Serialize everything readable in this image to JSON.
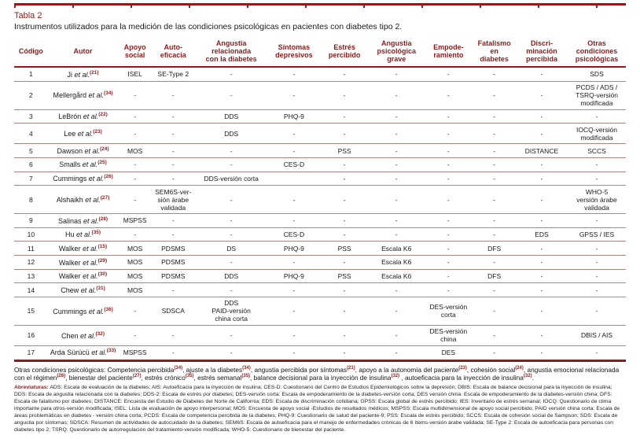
{
  "title": "Tabla 2",
  "subtitle": "Instrumentos utilizados para la medición de las condiciones psicológicas en pacientes con diabetes tipo 2.",
  "colors": {
    "accent_dark_red": "#8e1b1b",
    "row_separator": "#b08383",
    "text": "#1a1a1a"
  },
  "table": {
    "etal": "et al.",
    "columns": [
      {
        "id": "codigo",
        "label": "Código"
      },
      {
        "id": "autor",
        "label": "Autor"
      },
      {
        "id": "apoyo-social",
        "label": "Apoyo\nsocial"
      },
      {
        "id": "auto-eficacia",
        "label": "Auto-\neficacia"
      },
      {
        "id": "angustia-diabetes",
        "label": "Angustia\nrelacionada\ncon la diabetes"
      },
      {
        "id": "sintomas-depresivos",
        "label": "Síntomas\ndepresivos"
      },
      {
        "id": "estres-percibido",
        "label": "Estrés\npercibido"
      },
      {
        "id": "angustia-grave",
        "label": "Angustia\npsicológica\ngrave"
      },
      {
        "id": "empoderamiento",
        "label": "Empode-\nramiento"
      },
      {
        "id": "fatalismo-diabetes",
        "label": "Fatalismo\nen\ndiabetes"
      },
      {
        "id": "discriminacion-percibida",
        "label": "Discri-\nminación\npercibida"
      },
      {
        "id": "otras-condiciones",
        "label": "Otras\ncondiciones\npsicológicas"
      }
    ],
    "rows": [
      {
        "codigo": "1",
        "autor": "Ji",
        "cite": "(21)",
        "cells": [
          "ISEL",
          "SE-Type 2",
          "-",
          "-",
          "-",
          "-",
          "-",
          "-",
          "-",
          "SDS"
        ]
      },
      {
        "codigo": "2",
        "autor": "Mellergård",
        "cite": "(34)",
        "cells": [
          "-",
          "-",
          "-",
          "-",
          "-",
          "-",
          "-",
          "-",
          "-",
          "PCDS / ADS /\nTSRQ-versión\nmodificada"
        ]
      },
      {
        "codigo": "3",
        "autor": "LeBrón",
        "cite": "(22)",
        "cells": [
          "-",
          "-",
          "DDS",
          "PHQ-9",
          "-",
          "-",
          "-",
          "-",
          "-",
          "-"
        ]
      },
      {
        "codigo": "4",
        "autor": "Lee",
        "cite": "(23)",
        "cells": [
          "-",
          "-",
          "DDS",
          "-",
          "-",
          "-",
          "-",
          "-",
          "-",
          "IOCQ-versión\nmodificada"
        ]
      },
      {
        "codigo": "5",
        "autor": "Dawson",
        "cite": "(24)",
        "cells": [
          "MOS",
          "-",
          "-",
          "-",
          "PSS",
          "-",
          "-",
          "-",
          "DISTANCE",
          "SCCS"
        ]
      },
      {
        "codigo": "6",
        "autor": "Smalls",
        "cite": "(25)",
        "cells": [
          "-",
          "-",
          "-",
          "CES-D",
          "-",
          "-",
          "-",
          "-",
          "-",
          "-"
        ]
      },
      {
        "codigo": "7",
        "autor": "Cummings",
        "cite": "(26)",
        "cells": [
          "-",
          "-",
          "DDS-versión corta",
          "",
          "-",
          "-",
          "-",
          "-",
          "-",
          "-"
        ]
      },
      {
        "codigo": "8",
        "autor": "Alshaikh",
        "cite": "(27)",
        "cells": [
          "-",
          "SEM6S-ver-\nsión árabe\nvalidada",
          "-",
          "-",
          "-",
          "-",
          "-",
          "-",
          "-",
          "WHO-5\nversión árabe\nvalidada"
        ]
      },
      {
        "codigo": "9",
        "autor": "Salinas",
        "cite": "(28)",
        "cells": [
          "MSPSS",
          "-",
          "-",
          "-",
          "-",
          "-",
          "-",
          "-",
          "-",
          "-"
        ]
      },
      {
        "codigo": "10",
        "autor": "Hu",
        "cite": "(35)",
        "cells": [
          "-",
          "-",
          "-",
          "CES-D",
          "-",
          "-",
          "-",
          "-",
          "EDS",
          "GPSS / IES"
        ]
      },
      {
        "codigo": "11",
        "autor": "Walker",
        "cite": "(15)",
        "cells": [
          "MOS",
          "PDSMS",
          "DS",
          "PHQ-9",
          "PSS",
          "Escala K6",
          "-",
          "DFS",
          "-",
          "-"
        ]
      },
      {
        "codigo": "12",
        "autor": "Walker",
        "cite": "(29)",
        "cells": [
          "MOS",
          "PDSMS",
          "-",
          "-",
          "-",
          "Escala K6",
          "-",
          "-",
          "-",
          "-"
        ]
      },
      {
        "codigo": "13",
        "autor": "Walker",
        "cite": "(30)",
        "cells": [
          "MOS",
          "PDSMS",
          "DDS",
          "PHQ-9",
          "PSS",
          "Escala K6",
          "-",
          "DFS",
          "-",
          "-"
        ]
      },
      {
        "codigo": "14",
        "autor": "Chew",
        "cite": "(31)",
        "cells": [
          "MOS",
          "-",
          "-",
          "-",
          "-",
          "-",
          "-",
          "-",
          "-",
          "-"
        ]
      },
      {
        "codigo": "15",
        "autor": "Cummings",
        "cite": "(36)",
        "cells": [
          "-",
          "SDSCA",
          "DDS\nPAID-versión\nchina corta",
          "-",
          "-",
          "-",
          "DES-versión\ncorta",
          "-",
          "-",
          "-"
        ]
      },
      {
        "codigo": "16",
        "autor": "Chen",
        "cite": "(32)",
        "cells": [
          "-",
          "-",
          "-",
          "-",
          "-",
          "-",
          "DES-versión\nchina",
          "-",
          "-",
          "DBIS / AIS"
        ]
      },
      {
        "codigo": "17",
        "autor": "Arda Sürücü",
        "cite": "(33)",
        "cells": [
          "MSPSS",
          "-",
          "-",
          "-",
          "-",
          "-",
          "DES",
          "-",
          "-",
          "-"
        ]
      }
    ]
  },
  "footnote": {
    "segments": [
      {
        "text": "Otras condiciones psicológicas: Competencia percibida",
        "sup": "(34)"
      },
      {
        "text": ", ajuste a la diabetes",
        "sup": "(34)"
      },
      {
        "text": ", angustia percibida por síntomas",
        "sup": "(21)"
      },
      {
        "text": ", apoyo a la autonomía del paciente",
        "sup": "(23)"
      },
      {
        "text": ", cohesión social",
        "sup": "(24)"
      },
      {
        "text": ", angustia emocional relacionada con el régimen",
        "sup": "(26)"
      },
      {
        "text": ", bienestar del paciente",
        "sup": "(27)"
      },
      {
        "text": ", estrés crónico",
        "sup": "(35)"
      },
      {
        "text": ", estrés semanal",
        "sup": "(35)"
      },
      {
        "text": ", balance decisional para la inyección de insulina",
        "sup": "(32)"
      },
      {
        "text": " , autoeficacia para la inyección de insulina",
        "sup": "(32)"
      },
      {
        "text": "."
      }
    ]
  },
  "abbreviations": {
    "label": "Abreviaturas:",
    "text": "ADS: Escala de evaluación de la diabetes; AIS: Autoeficacia para la inyección de insulina; CES-D: Cuestionario del Centro de Estudios Epidemiológicos sobre la depresión; DBIS: Escala de balance decisional para la inyección de insulina; DDS: Escala de angustia relacionada con la diabetes; DDS-2: Escala de estrés por diabetes; DES-versión corta: Escala de empoderamiento de la diabetes-versión corta; DES versión china: Escala de empoderamiento de la diabetes-versión china; DFS: Escala de fatalismo por diabetes; DISTANCE: Encuesta del Estudio de Diabetes del Norte de California; EDS: Escala de discriminación cotidiana; GPSS: Escala global de estrés percibido; IES: Inventario de estrés semanal; IOCQ: Questionario de clima importante para otros-versión modificada; ISEL: Lista de evaluación de apoyo interpersonal; MOS: Encuesta de apoyo social -Estudios de resultados médicos; MSPSS: Escala multidimensional de apoyo social percibido; PAID versión china corta: Escala de áreas problemáticas en diabetes - versión china corta; PCDS: Escala de competencia percibida de la diabetes; PHQ-9: Cuestionario de salud del paciente-9; PSS: Escala de estrés percibido; SCCS: Escala de cohesión social de Sampson; SDS: Escala de angustia por síntomas; SDSCA: Resumen de actividades de autocuidado de la diabetes; SEM6S: Escala de autoeficacia para el manejo de enfermedades crónicas de 6 ítems-versión árabe validada; SE-Type 2: Escala de autoeficacia para personas con diabetes tipo 2; TSRQ: Questionario de autorregulación del tratamiento-versión modificada; WHO-5: Cuestionario de bienestar del paciente."
  }
}
